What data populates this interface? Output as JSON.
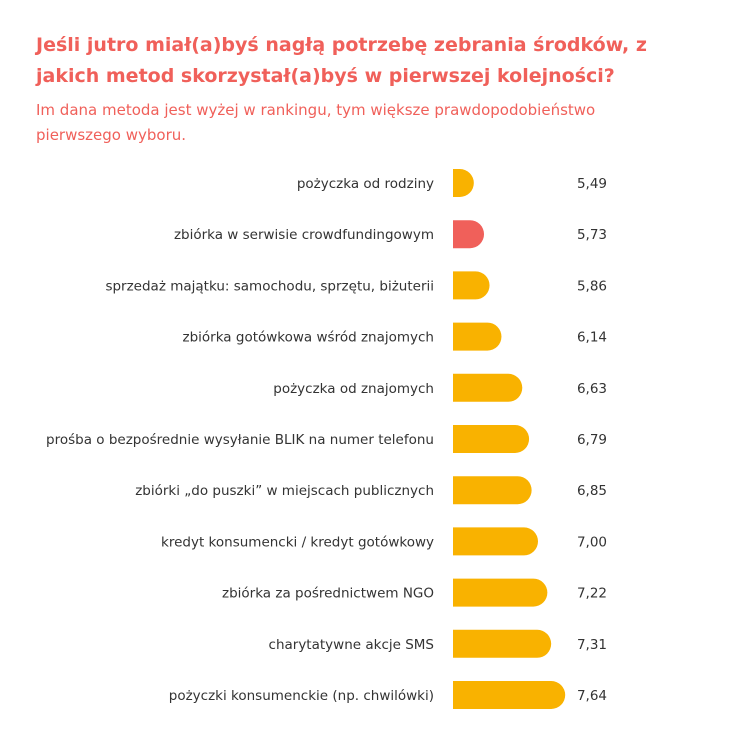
{
  "chart_data": {
    "type": "bar",
    "orientation": "horizontal",
    "title": "Jeśli jutro miał(a)byś nagłą potrzebę zebrania środków, z jakich metod skorzystał(a)byś w pierwszej kolejności?",
    "subtitle": "Im dana metoda jest wyżej w rankingu, tym większe prawdopodobieństwo pierwszego wyboru.",
    "categories": [
      "pożyczka od rodziny",
      "zbiórka w serwisie crowdfundingowym",
      "sprzedaż majątku: samochodu, sprzętu, biżuterii",
      "zbiórka gotówkowa wśród znajomych",
      "pożyczka od znajomych",
      "prośba o bezpośrednie wysyłanie BLIK na numer telefonu",
      "zbiórki „do puszki” w miejscach publicznych",
      "kredyt konsumencki / kredyt gotówkowy",
      "zbiórka za pośrednictwem NGO",
      "charytatywne akcje SMS",
      "pożyczki konsumenckie (np. chwilówki)"
    ],
    "values": [
      5.49,
      5.73,
      5.86,
      6.14,
      6.63,
      6.79,
      6.85,
      7.0,
      7.22,
      7.31,
      7.64
    ],
    "value_labels": [
      "5,49",
      "5,73",
      "5,86",
      "6,14",
      "6,63",
      "6,79",
      "6,85",
      "7,00",
      "7,22",
      "7,31",
      "7,64"
    ],
    "highlight_index": 1,
    "colors": {
      "bar": "#f9b200",
      "highlight": "#f0605a",
      "title": "#f0605a",
      "text": "#333333"
    }
  }
}
